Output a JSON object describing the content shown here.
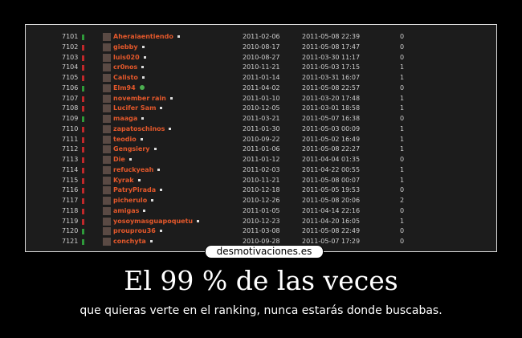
{
  "ranking": [
    {
      "rank": "7101",
      "trend": "up",
      "name": "Aheraiaentiendo",
      "online": false,
      "joined": "2011-02-06",
      "last": "2011-05-08 22:39",
      "count": "0"
    },
    {
      "rank": "7102",
      "trend": "down",
      "name": "giebby",
      "online": false,
      "joined": "2010-08-17",
      "last": "2011-05-08 17:47",
      "count": "0"
    },
    {
      "rank": "7103",
      "trend": "down",
      "name": "luis020",
      "online": false,
      "joined": "2010-08-27",
      "last": "2011-03-30 11:17",
      "count": "0"
    },
    {
      "rank": "7104",
      "trend": "down",
      "name": "cr0nos",
      "online": false,
      "joined": "2010-11-21",
      "last": "2011-05-03 17:15",
      "count": "1"
    },
    {
      "rank": "7105",
      "trend": "down",
      "name": "Calisto",
      "online": false,
      "joined": "2011-01-14",
      "last": "2011-03-31 16:07",
      "count": "1"
    },
    {
      "rank": "7106",
      "trend": "up",
      "name": "Elm94",
      "online": true,
      "joined": "2011-04-02",
      "last": "2011-05-08 22:57",
      "count": "0"
    },
    {
      "rank": "7107",
      "trend": "down",
      "name": "november rain",
      "online": false,
      "joined": "2011-01-10",
      "last": "2011-03-20 17:48",
      "count": "1"
    },
    {
      "rank": "7108",
      "trend": "down",
      "name": "Lucifer Sam",
      "online": false,
      "joined": "2010-12-05",
      "last": "2011-03-01 18:58",
      "count": "1"
    },
    {
      "rank": "7109",
      "trend": "up",
      "name": "maaga",
      "online": false,
      "joined": "2011-03-21",
      "last": "2011-05-07 16:38",
      "count": "0"
    },
    {
      "rank": "7110",
      "trend": "down",
      "name": "zapatoschinos",
      "online": false,
      "joined": "2011-01-30",
      "last": "2011-05-03 00:09",
      "count": "1"
    },
    {
      "rank": "7111",
      "trend": "down",
      "name": "teodio",
      "online": false,
      "joined": "2010-09-22",
      "last": "2011-05-02 16:49",
      "count": "1"
    },
    {
      "rank": "7112",
      "trend": "down",
      "name": "Gengsiery",
      "online": false,
      "joined": "2011-01-06",
      "last": "2011-05-08 22:27",
      "count": "1"
    },
    {
      "rank": "7113",
      "trend": "down",
      "name": "Die",
      "online": false,
      "joined": "2011-01-12",
      "last": "2011-04-04 01:35",
      "count": "0"
    },
    {
      "rank": "7114",
      "trend": "down",
      "name": "refuckyeah",
      "online": false,
      "joined": "2011-02-03",
      "last": "2011-04-22 00:55",
      "count": "1"
    },
    {
      "rank": "7115",
      "trend": "down",
      "name": "Kyrak",
      "online": false,
      "joined": "2010-11-21",
      "last": "2011-05-08 00:07",
      "count": "1"
    },
    {
      "rank": "7116",
      "trend": "down",
      "name": "PatryPirada",
      "online": false,
      "joined": "2010-12-18",
      "last": "2011-05-05 19:53",
      "count": "0"
    },
    {
      "rank": "7117",
      "trend": "down",
      "name": "picherulo",
      "online": false,
      "joined": "2010-12-26",
      "last": "2011-05-08 20:06",
      "count": "2"
    },
    {
      "rank": "7118",
      "trend": "down",
      "name": "amigas",
      "online": false,
      "joined": "2011-01-05",
      "last": "2011-04-14 22:16",
      "count": "0"
    },
    {
      "rank": "7119",
      "trend": "down",
      "name": "yosoymasguapoquetu",
      "online": false,
      "joined": "2010-12-23",
      "last": "2011-04-20 16:05",
      "count": "1"
    },
    {
      "rank": "7120",
      "trend": "up",
      "name": "prouprou36",
      "online": false,
      "joined": "2011-03-08",
      "last": "2011-05-08 22:49",
      "count": "0"
    },
    {
      "rank": "7121",
      "trend": "up",
      "name": "conchyta",
      "online": false,
      "joined": "2010-09-28",
      "last": "2011-05-07 17:29",
      "count": "0"
    }
  ],
  "colors": {
    "up": "#2e9a3a",
    "down": "#c0282a",
    "name": "#e4582b"
  },
  "logo": "desmotivaciones.es",
  "title": "El 99 % de las veces",
  "subtitle": "que quieras verte en el ranking, nunca estarás donde buscabas."
}
